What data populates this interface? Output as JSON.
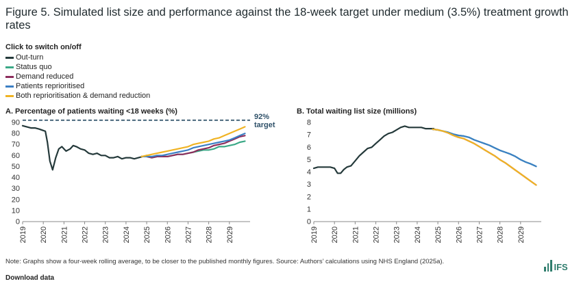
{
  "title": "Figure 5. Simulated list size and performance against the 18-week target under medium (3.5%) treatment growth rates",
  "legend": {
    "heading": "Click to switch on/off",
    "items": [
      {
        "label": "Out-turn",
        "color": "#24393a"
      },
      {
        "label": "Status quo",
        "color": "#3aa886"
      },
      {
        "label": "Demand reduced",
        "color": "#8c2d5c"
      },
      {
        "label": "Patients reprioritised",
        "color": "#3b7fc4"
      },
      {
        "label": "Both reprioritisation & demand reduction",
        "color": "#f0b323"
      }
    ]
  },
  "chart_data": [
    {
      "type": "line",
      "title": "A. Percentage of patients waiting <18 weeks (%)",
      "xlim": [
        2019,
        2030
      ],
      "ylim": [
        0,
        90
      ],
      "x_ticks": [
        "2019",
        "2020",
        "2021",
        "2022",
        "2023",
        "2024",
        "2025",
        "2026",
        "2027",
        "2028",
        "2029"
      ],
      "y_ticks": [
        0,
        10,
        20,
        30,
        40,
        50,
        60,
        70,
        80,
        90
      ],
      "gridlines": false,
      "reference_line": {
        "value": 92,
        "label_line1": "92%",
        "label_line2": "target"
      },
      "series": [
        {
          "name": "Out-turn",
          "color": "#24393a",
          "x": [
            2019.0,
            2019.2,
            2019.4,
            2019.6,
            2019.8,
            2019.95,
            2020.1,
            2020.2,
            2020.32,
            2020.45,
            2020.6,
            2020.75,
            2020.9,
            2021.0,
            2021.1,
            2021.2,
            2021.3,
            2021.45,
            2021.6,
            2021.8,
            2022.0,
            2022.2,
            2022.4,
            2022.6,
            2022.8,
            2023.0,
            2023.2,
            2023.4,
            2023.6,
            2023.8,
            2024.0,
            2024.2,
            2024.4,
            2024.6,
            2024.8,
            2025.0
          ],
          "y": [
            87,
            86,
            85,
            85,
            84,
            83,
            82,
            72,
            55,
            47,
            58,
            66,
            68,
            66,
            64,
            65,
            66,
            69,
            68,
            66,
            65,
            62,
            61,
            62,
            60,
            60,
            58,
            58,
            59,
            57,
            58,
            58,
            57,
            58,
            59,
            60
          ]
        },
        {
          "name": "Status quo",
          "color": "#3aa886",
          "x": [
            2024.75,
            2025.0,
            2025.25,
            2025.5,
            2025.75,
            2026.0,
            2026.25,
            2026.5,
            2026.75,
            2027.0,
            2027.25,
            2027.5,
            2027.75,
            2028.0,
            2028.25,
            2028.5,
            2028.75,
            2029.0,
            2029.25,
            2029.5,
            2029.75
          ],
          "y": [
            59,
            59,
            58,
            59,
            59,
            59,
            60,
            61,
            61,
            62,
            63,
            64,
            65,
            65,
            66,
            68,
            68,
            69,
            70,
            72,
            73
          ]
        },
        {
          "name": "Demand reduced",
          "color": "#8c2d5c",
          "x": [
            2024.75,
            2025.0,
            2025.25,
            2025.5,
            2025.75,
            2026.0,
            2026.25,
            2026.5,
            2026.75,
            2027.0,
            2027.25,
            2027.5,
            2027.75,
            2028.0,
            2028.25,
            2028.5,
            2028.75,
            2029.0,
            2029.25,
            2029.5,
            2029.75
          ],
          "y": [
            59,
            59,
            58,
            59,
            59,
            59,
            60,
            61,
            61,
            62,
            63,
            65,
            66,
            67,
            69,
            70,
            71,
            73,
            75,
            77,
            78
          ]
        },
        {
          "name": "Patients reprioritised",
          "color": "#3b7fc4",
          "x": [
            2024.75,
            2025.0,
            2025.25,
            2025.5,
            2025.75,
            2026.0,
            2026.25,
            2026.5,
            2026.75,
            2027.0,
            2027.25,
            2027.5,
            2027.75,
            2028.0,
            2028.25,
            2028.5,
            2028.75,
            2029.0,
            2029.25,
            2029.5,
            2029.75
          ],
          "y": [
            59,
            59,
            59,
            60,
            60,
            61,
            62,
            63,
            64,
            65,
            67,
            68,
            69,
            70,
            71,
            72,
            73,
            74,
            76,
            78,
            80
          ]
        },
        {
          "name": "Both reprioritisation & demand reduction",
          "color": "#f0b323",
          "x": [
            2024.75,
            2025.0,
            2025.25,
            2025.5,
            2025.75,
            2026.0,
            2026.25,
            2026.5,
            2026.75,
            2027.0,
            2027.25,
            2027.5,
            2027.75,
            2028.0,
            2028.25,
            2028.5,
            2028.75,
            2029.0,
            2029.25,
            2029.5,
            2029.75
          ],
          "y": [
            59,
            60,
            61,
            62,
            63,
            64,
            65,
            66,
            67,
            68,
            70,
            71,
            72,
            73,
            75,
            76,
            78,
            80,
            82,
            84,
            86
          ]
        }
      ]
    },
    {
      "type": "line",
      "title": "B. Total waiting list size (millions)",
      "xlim": [
        2019,
        2030
      ],
      "ylim": [
        0,
        8
      ],
      "x_ticks": [
        "2019",
        "2020",
        "2021",
        "2022",
        "2023",
        "2024",
        "2025",
        "2026",
        "2027",
        "2028",
        "2029"
      ],
      "y_ticks": [
        0,
        1,
        2,
        3,
        4,
        5,
        6,
        7,
        8
      ],
      "gridlines": false,
      "series": [
        {
          "name": "Out-turn",
          "color": "#24393a",
          "x": [
            2019.0,
            2019.2,
            2019.4,
            2019.6,
            2019.8,
            2020.0,
            2020.15,
            2020.3,
            2020.45,
            2020.6,
            2020.8,
            2021.0,
            2021.2,
            2021.4,
            2021.6,
            2021.8,
            2022.0,
            2022.2,
            2022.4,
            2022.6,
            2022.8,
            2023.0,
            2023.2,
            2023.4,
            2023.6,
            2023.8,
            2024.0,
            2024.2,
            2024.4,
            2024.6,
            2024.8
          ],
          "y": [
            4.3,
            4.4,
            4.4,
            4.4,
            4.4,
            4.3,
            3.9,
            3.9,
            4.2,
            4.4,
            4.5,
            4.9,
            5.3,
            5.6,
            5.9,
            6.0,
            6.3,
            6.6,
            6.9,
            7.1,
            7.2,
            7.4,
            7.6,
            7.7,
            7.6,
            7.6,
            7.6,
            7.6,
            7.5,
            7.5,
            7.5
          ]
        },
        {
          "name": "Status quo",
          "color": "#3aa886",
          "x": [
            2024.75,
            2025.0,
            2025.25,
            2025.5,
            2025.75,
            2026.0,
            2026.25,
            2026.5,
            2026.75,
            2027.0,
            2027.25,
            2027.5,
            2027.75,
            2028.0,
            2028.25,
            2028.5,
            2028.75,
            2029.0,
            2029.25,
            2029.5,
            2029.75
          ],
          "y": [
            7.45,
            7.4,
            7.3,
            7.2,
            7.05,
            6.95,
            6.9,
            6.8,
            6.6,
            6.45,
            6.3,
            6.15,
            5.95,
            5.75,
            5.6,
            5.45,
            5.25,
            5.0,
            4.8,
            4.65,
            4.45
          ]
        },
        {
          "name": "Demand reduced",
          "color": "#8c2d5c",
          "x": [
            2024.75,
            2025.0,
            2025.25,
            2025.5,
            2025.75,
            2026.0,
            2026.25,
            2026.5,
            2026.75,
            2027.0,
            2027.25,
            2027.5,
            2027.75,
            2028.0,
            2028.25,
            2028.5,
            2028.75,
            2029.0,
            2029.25,
            2029.5,
            2029.75
          ],
          "y": [
            7.45,
            7.4,
            7.3,
            7.15,
            6.95,
            6.8,
            6.7,
            6.5,
            6.3,
            6.05,
            5.8,
            5.55,
            5.3,
            5.0,
            4.75,
            4.45,
            4.15,
            3.85,
            3.55,
            3.25,
            2.95
          ]
        },
        {
          "name": "Patients reprioritised",
          "color": "#3b7fc4",
          "x": [
            2024.75,
            2025.0,
            2025.25,
            2025.5,
            2025.75,
            2026.0,
            2026.25,
            2026.5,
            2026.75,
            2027.0,
            2027.25,
            2027.5,
            2027.75,
            2028.0,
            2028.25,
            2028.5,
            2028.75,
            2029.0,
            2029.25,
            2029.5,
            2029.75
          ],
          "y": [
            7.45,
            7.4,
            7.3,
            7.2,
            7.05,
            6.95,
            6.9,
            6.8,
            6.6,
            6.45,
            6.3,
            6.15,
            5.95,
            5.75,
            5.6,
            5.45,
            5.25,
            5.0,
            4.8,
            4.65,
            4.45
          ]
        },
        {
          "name": "Both reprioritisation & demand reduction",
          "color": "#f0b323",
          "x": [
            2024.75,
            2025.0,
            2025.25,
            2025.5,
            2025.75,
            2026.0,
            2026.25,
            2026.5,
            2026.75,
            2027.0,
            2027.25,
            2027.5,
            2027.75,
            2028.0,
            2028.25,
            2028.5,
            2028.75,
            2029.0,
            2029.25,
            2029.5,
            2029.75
          ],
          "y": [
            7.45,
            7.4,
            7.3,
            7.15,
            6.95,
            6.8,
            6.7,
            6.5,
            6.3,
            6.05,
            5.8,
            5.55,
            5.3,
            5.0,
            4.75,
            4.45,
            4.15,
            3.85,
            3.55,
            3.25,
            2.95
          ]
        }
      ]
    }
  ],
  "note": "Note: Graphs show a four-week rolling average, to be closer to the published monthly figures. Source: Authors’ calculations using NHS England (2025a).",
  "download": "Download data",
  "logo": {
    "text": "IFS",
    "color": "#2f7d6d"
  }
}
